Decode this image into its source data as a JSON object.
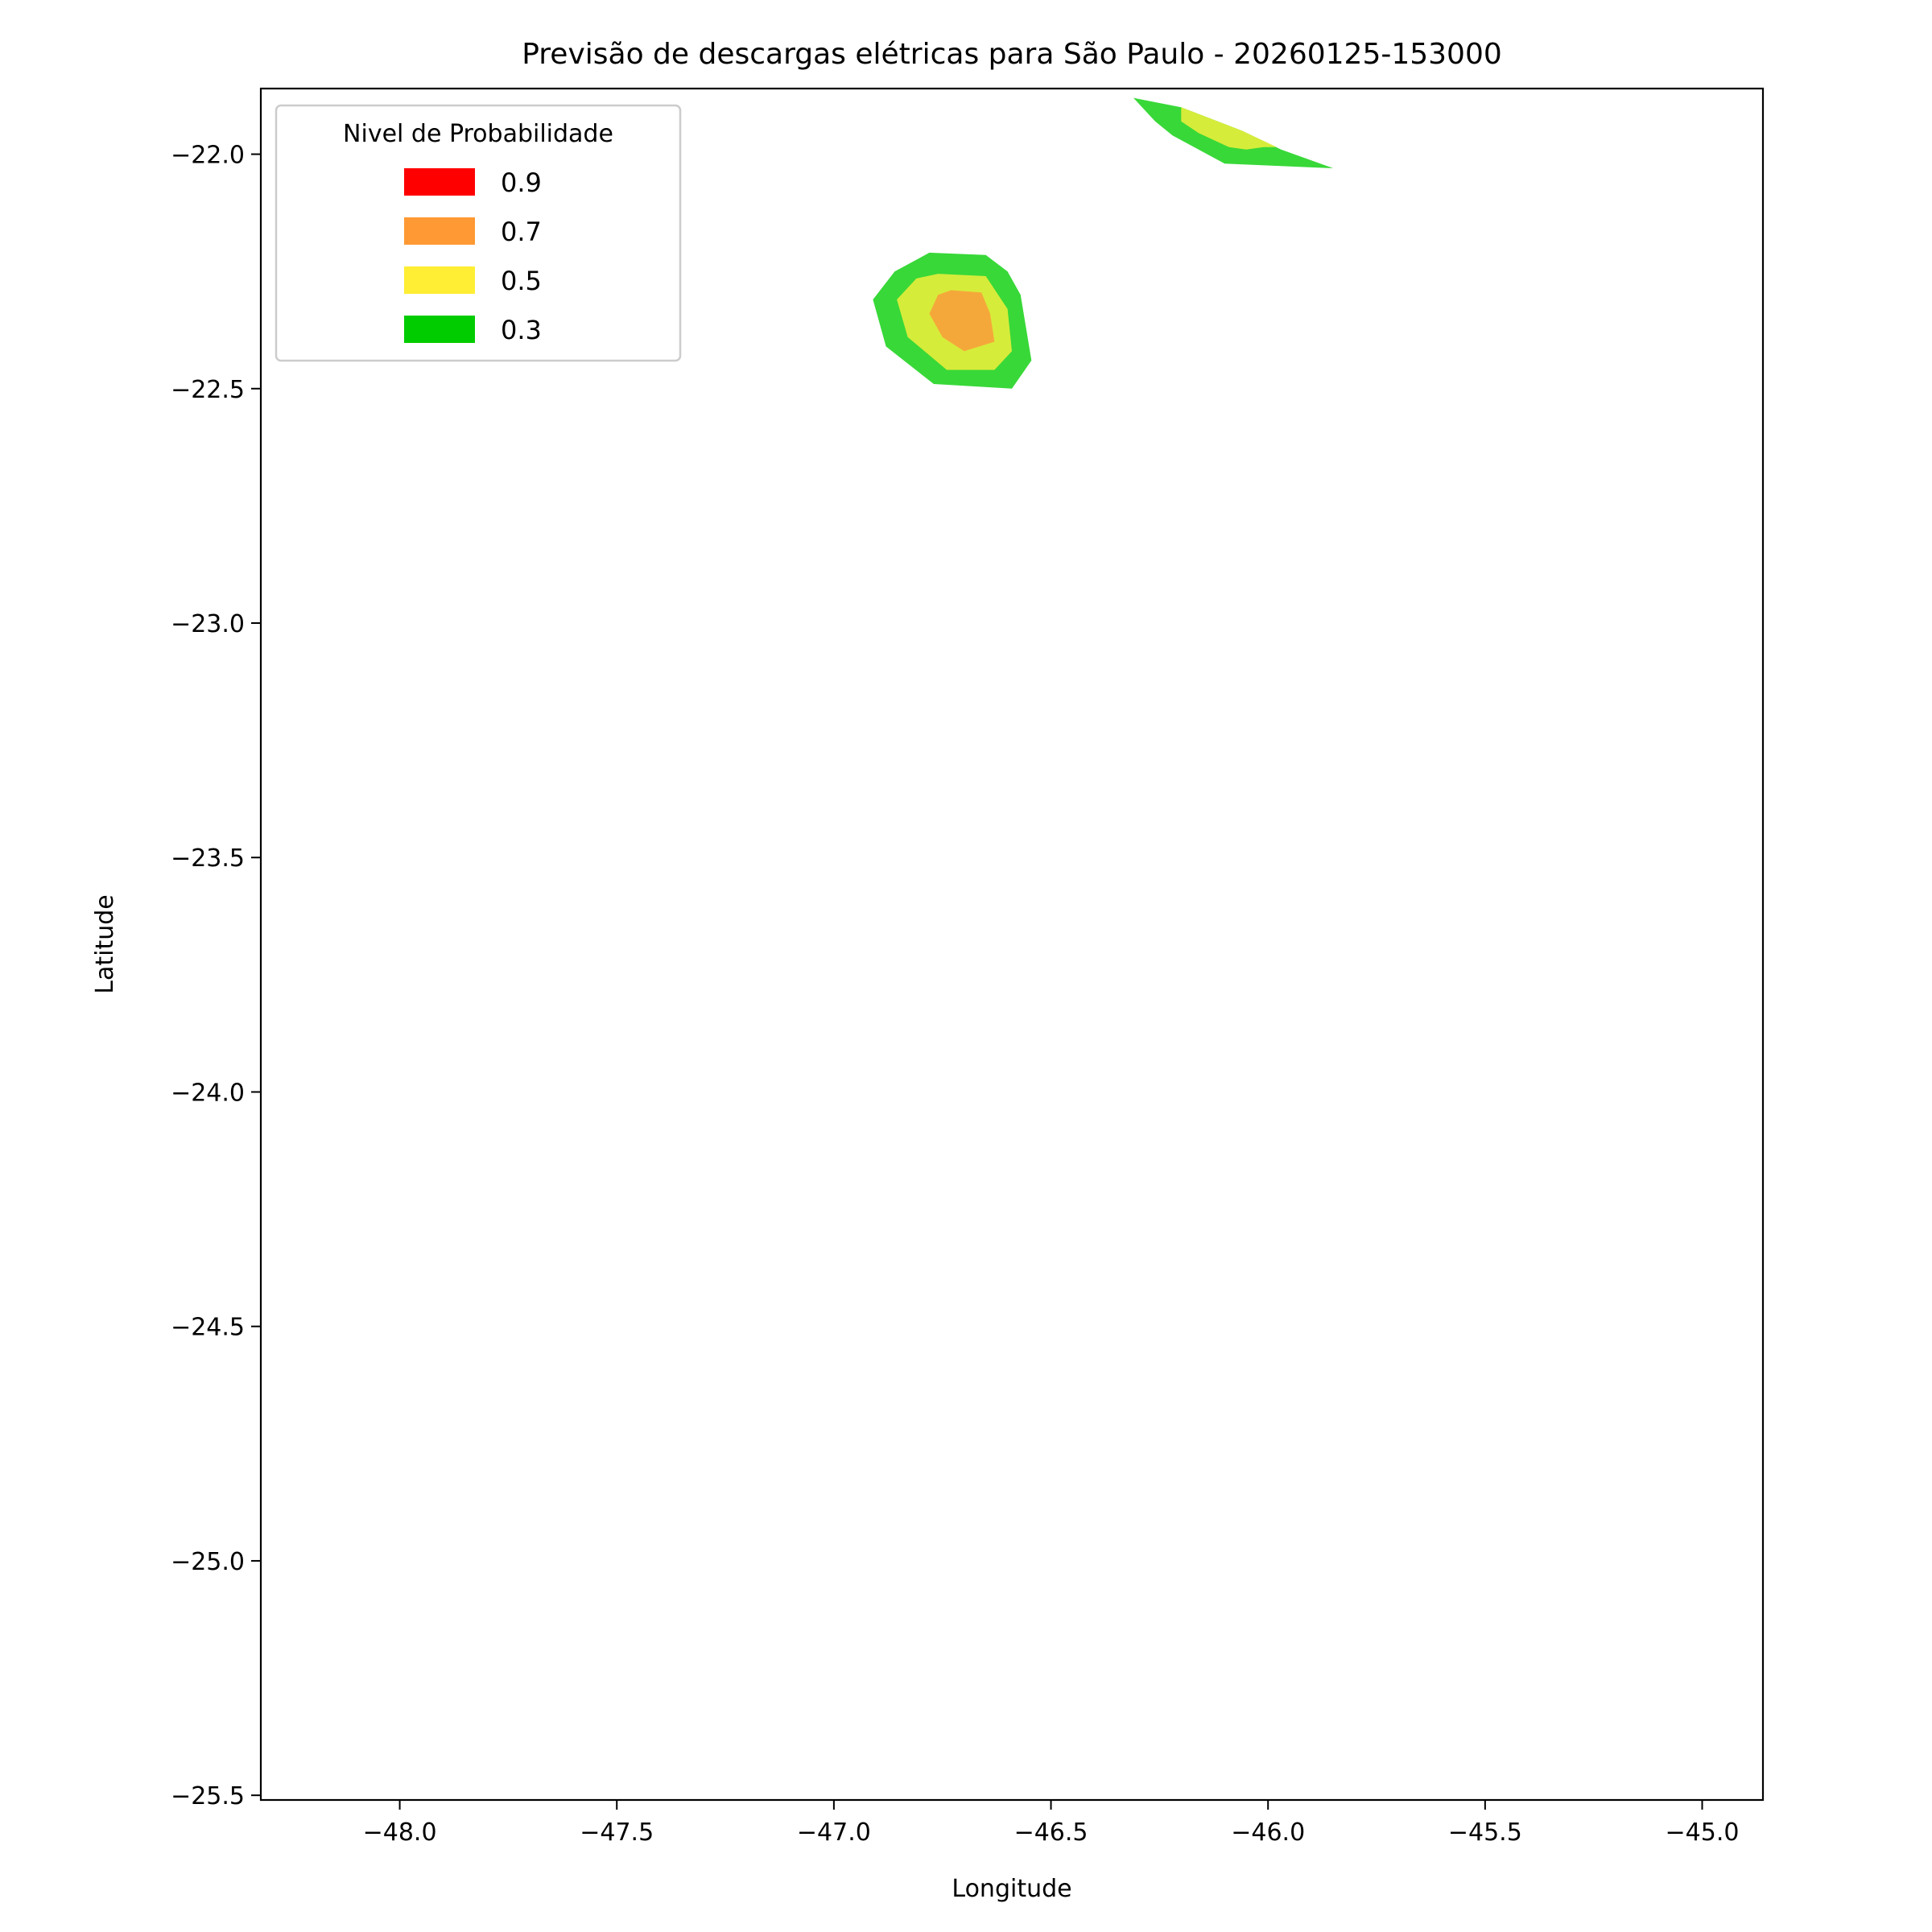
{
  "chart_data": {
    "type": "contour",
    "title": "Previsão de descargas elétricas para São Paulo - 20260125-153000",
    "xlabel": "Longitude",
    "ylabel": "Latitude",
    "xlim": [
      -48.32,
      -44.86
    ],
    "ylim": [
      -25.51,
      -21.86
    ],
    "x_ticks": [
      -48.0,
      -47.5,
      -47.0,
      -46.5,
      -46.0,
      -45.5,
      -45.0
    ],
    "x_tick_labels": [
      "−48.0",
      "−47.5",
      "−47.0",
      "−46.5",
      "−46.0",
      "−45.5",
      "−45.0"
    ],
    "y_ticks": [
      -22.0,
      -22.5,
      -23.0,
      -23.5,
      -24.0,
      -24.5,
      -25.0,
      -25.5
    ],
    "y_tick_labels": [
      "−22.0",
      "−22.5",
      "−23.0",
      "−23.5",
      "−24.0",
      "−24.5",
      "−25.0",
      "−25.5"
    ],
    "grid": false,
    "legend": {
      "title": "Nivel de Probabilidade",
      "position": "top-left",
      "entries": [
        {
          "label": "0.9",
          "color": "#ff0000"
        },
        {
          "label": "0.7",
          "color": "#ff9933"
        },
        {
          "label": "0.5",
          "color": "#ffee33"
        },
        {
          "label": "0.3",
          "color": "#00cc00"
        }
      ]
    },
    "contour_colors": {
      "0.3": "#38d838",
      "0.5": "#d6ec3a",
      "0.7": "#f5a83a"
    },
    "regions": [
      {
        "level": "0.3",
        "points": [
          [
            -46.78,
            -22.21
          ],
          [
            -46.65,
            -22.215
          ],
          [
            -46.6,
            -22.25
          ],
          [
            -46.57,
            -22.3
          ],
          [
            -46.545,
            -22.44
          ],
          [
            -46.59,
            -22.5
          ],
          [
            -46.77,
            -22.49
          ],
          [
            -46.88,
            -22.41
          ],
          [
            -46.91,
            -22.31
          ],
          [
            -46.86,
            -22.25
          ]
        ]
      },
      {
        "level": "0.5",
        "points": [
          [
            -46.76,
            -22.255
          ],
          [
            -46.65,
            -22.26
          ],
          [
            -46.6,
            -22.33
          ],
          [
            -46.59,
            -22.42
          ],
          [
            -46.63,
            -22.46
          ],
          [
            -46.74,
            -22.46
          ],
          [
            -46.83,
            -22.39
          ],
          [
            -46.855,
            -22.31
          ],
          [
            -46.81,
            -22.265
          ]
        ]
      },
      {
        "level": "0.7",
        "points": [
          [
            -46.73,
            -22.29
          ],
          [
            -46.66,
            -22.295
          ],
          [
            -46.64,
            -22.34
          ],
          [
            -46.63,
            -22.4
          ],
          [
            -46.7,
            -22.42
          ],
          [
            -46.75,
            -22.39
          ],
          [
            -46.78,
            -22.34
          ],
          [
            -46.76,
            -22.3
          ]
        ]
      },
      {
        "level": "0.3",
        "points": [
          [
            -46.31,
            -21.88
          ],
          [
            -46.2,
            -21.9
          ],
          [
            -46.06,
            -21.95
          ],
          [
            -45.97,
            -21.99
          ],
          [
            -45.85,
            -22.03
          ],
          [
            -46.1,
            -22.02
          ],
          [
            -46.16,
            -21.99
          ],
          [
            -46.22,
            -21.96
          ],
          [
            -46.26,
            -21.93
          ],
          [
            -46.28,
            -21.91
          ]
        ]
      },
      {
        "level": "0.5",
        "points": [
          [
            -46.2,
            -21.9
          ],
          [
            -46.06,
            -21.95
          ],
          [
            -45.98,
            -21.985
          ],
          [
            -46.01,
            -21.985
          ],
          [
            -46.05,
            -21.99
          ],
          [
            -46.09,
            -21.985
          ],
          [
            -46.16,
            -21.955
          ],
          [
            -46.2,
            -21.93
          ]
        ]
      }
    ]
  }
}
